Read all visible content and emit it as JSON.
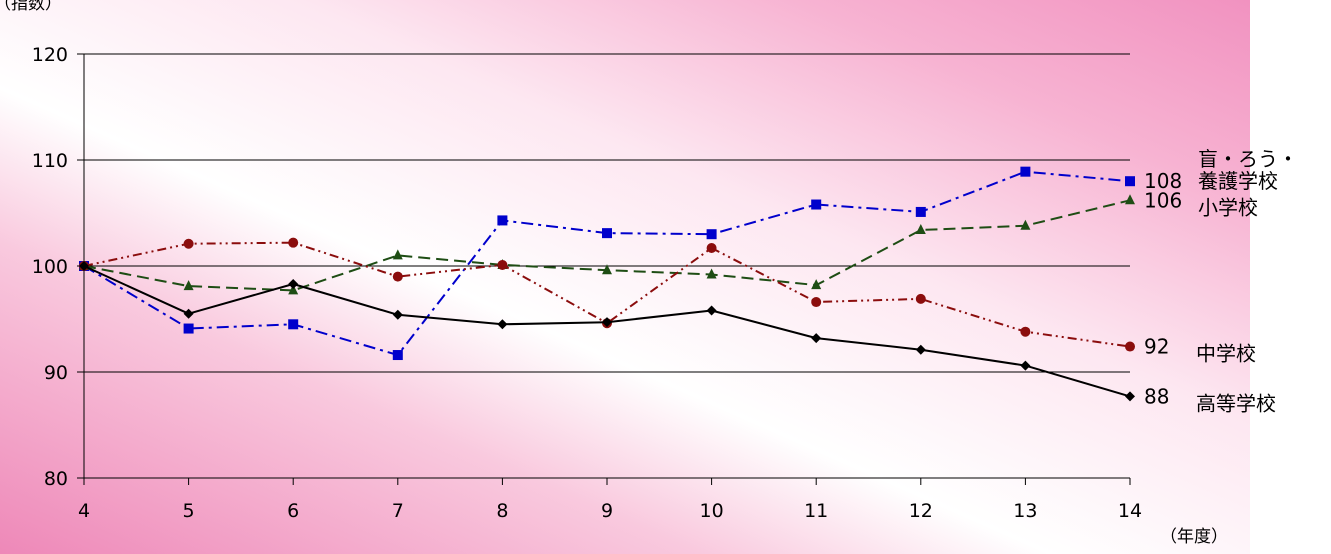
{
  "chart_data": {
    "type": "line",
    "title": "",
    "ylabel": "（指数）",
    "xlabel": "（年度）",
    "x": [
      4,
      5,
      6,
      7,
      8,
      9,
      10,
      11,
      12,
      13,
      14
    ],
    "ylim": [
      80,
      120
    ],
    "yticks": [
      80,
      90,
      100,
      110,
      120
    ],
    "grid": true,
    "legend": "end-of-line labels",
    "series": [
      {
        "name_lines": [
          "盲・ろう・",
          "養護学校"
        ],
        "end_label": "108",
        "color": "#0000cc",
        "marker": "square",
        "dash": "dash-dot",
        "values": [
          100,
          94.1,
          94.5,
          91.6,
          104.3,
          103.1,
          103.0,
          105.8,
          105.1,
          108.9,
          108.0
        ]
      },
      {
        "name_lines": [
          "小学校"
        ],
        "end_label": "106",
        "color": "#1e4d14",
        "marker": "triangle",
        "dash": "dash",
        "values": [
          100,
          98.1,
          97.7,
          101.0,
          100.1,
          99.6,
          99.2,
          98.2,
          103.4,
          103.8,
          106.2
        ]
      },
      {
        "name_lines": [
          "中学校"
        ],
        "end_label": "92",
        "color": "#8b0d0d",
        "marker": "circle",
        "dash": "dash-dot-dot",
        "values": [
          100,
          102.1,
          102.2,
          99.0,
          100.1,
          94.6,
          101.7,
          96.6,
          96.9,
          93.8,
          92.4
        ]
      },
      {
        "name_lines": [
          "高等学校"
        ],
        "end_label": "88",
        "color": "#000000",
        "marker": "diamond",
        "dash": "solid",
        "values": [
          100,
          95.5,
          98.3,
          95.4,
          94.5,
          94.7,
          95.8,
          93.2,
          92.1,
          90.6,
          87.7
        ]
      }
    ]
  }
}
